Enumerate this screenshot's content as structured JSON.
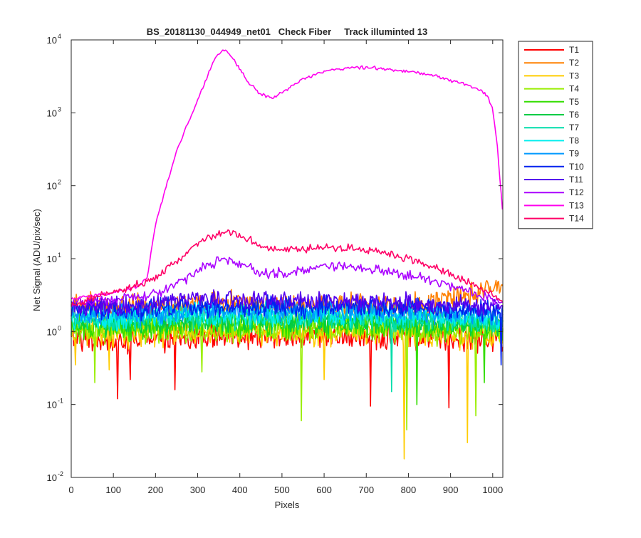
{
  "chart_data": {
    "type": "line",
    "title": "BS_20181130_044949_net01   Check Fiber     Track illuminted 13",
    "xlabel": "Pixels",
    "ylabel": "Net Signal (ADU/pix/sec)",
    "xlim": [
      0,
      1024
    ],
    "ylim": [
      0.01,
      10000
    ],
    "yscale": "log",
    "grid": false,
    "legend_position": "outside-top-right",
    "x_ticks": [
      0,
      100,
      200,
      300,
      400,
      500,
      600,
      700,
      800,
      900,
      1000
    ],
    "y_ticks": [
      {
        "value": 0.01,
        "mantissa": "10",
        "exponent": "-2"
      },
      {
        "value": 0.1,
        "mantissa": "10",
        "exponent": "-1"
      },
      {
        "value": 1,
        "mantissa": "10",
        "exponent": "0"
      },
      {
        "value": 10,
        "mantissa": "10",
        "exponent": "1"
      },
      {
        "value": 100,
        "mantissa": "10",
        "exponent": "2"
      },
      {
        "value": 1000,
        "mantissa": "10",
        "exponent": "3"
      },
      {
        "value": 10000,
        "mantissa": "10",
        "exponent": "4"
      }
    ],
    "series": [
      {
        "name": "T1",
        "color": "#ff0000",
        "noise": 0.5,
        "spikes": [
          [
            110,
            0.12
          ],
          [
            140,
            0.22
          ],
          [
            245,
            0.16
          ],
          [
            710,
            0.095
          ],
          [
            895,
            0.09
          ]
        ],
        "x": [
          0,
          100,
          200,
          300,
          400,
          500,
          600,
          700,
          800,
          900,
          1024
        ],
        "y": [
          0.8,
          0.75,
          0.8,
          0.85,
          0.85,
          0.85,
          0.85,
          0.85,
          0.85,
          0.8,
          0.8
        ]
      },
      {
        "name": "T2",
        "color": "#ff8000",
        "noise": 0.5,
        "spikes": [],
        "x": [
          0,
          100,
          200,
          300,
          400,
          500,
          600,
          700,
          800,
          850,
          900,
          950,
          1000,
          1024
        ],
        "y": [
          2.3,
          2.1,
          2.2,
          2.4,
          2.4,
          2.3,
          2.3,
          2.3,
          2.3,
          2.4,
          2.6,
          3.2,
          4.2,
          4.6
        ]
      },
      {
        "name": "T3",
        "color": "#ffcc00",
        "noise": 0.55,
        "spikes": [
          [
            10,
            0.35
          ],
          [
            90,
            0.3
          ],
          [
            790,
            0.018
          ],
          [
            940,
            0.03
          ],
          [
            600,
            0.22
          ]
        ],
        "x": [
          0,
          100,
          200,
          300,
          400,
          500,
          600,
          700,
          800,
          900,
          1024
        ],
        "y": [
          1.0,
          0.95,
          1.0,
          1.0,
          1.0,
          1.0,
          1.0,
          1.0,
          1.0,
          0.95,
          0.9
        ]
      },
      {
        "name": "T4",
        "color": "#99ee00",
        "noise": 0.55,
        "spikes": [
          [
            55,
            0.2
          ],
          [
            545,
            0.06
          ],
          [
            795,
            0.045
          ],
          [
            960,
            0.07
          ],
          [
            310,
            0.28
          ]
        ],
        "x": [
          0,
          100,
          200,
          300,
          400,
          500,
          600,
          700,
          800,
          900,
          1024
        ],
        "y": [
          1.1,
          1.05,
          1.1,
          1.1,
          1.1,
          1.1,
          1.1,
          1.1,
          1.1,
          1.05,
          1.0
        ]
      },
      {
        "name": "T5",
        "color": "#33dd00",
        "noise": 0.5,
        "spikes": [
          [
            820,
            0.1
          ],
          [
            980,
            0.2
          ]
        ],
        "x": [
          0,
          100,
          200,
          300,
          400,
          500,
          600,
          700,
          800,
          900,
          1024
        ],
        "y": [
          1.2,
          1.15,
          1.2,
          1.25,
          1.25,
          1.25,
          1.25,
          1.25,
          1.2,
          1.15,
          1.1
        ]
      },
      {
        "name": "T6",
        "color": "#00cc44",
        "noise": 0.45,
        "spikes": [],
        "x": [
          0,
          100,
          200,
          300,
          400,
          500,
          600,
          700,
          800,
          900,
          1024
        ],
        "y": [
          1.35,
          1.3,
          1.35,
          1.4,
          1.4,
          1.4,
          1.4,
          1.4,
          1.35,
          1.3,
          1.25
        ]
      },
      {
        "name": "T7",
        "color": "#00ddaa",
        "noise": 0.45,
        "spikes": [
          [
            760,
            0.15
          ]
        ],
        "x": [
          0,
          100,
          200,
          300,
          400,
          500,
          600,
          700,
          800,
          900,
          1024
        ],
        "y": [
          1.5,
          1.45,
          1.5,
          1.55,
          1.55,
          1.55,
          1.55,
          1.55,
          1.5,
          1.45,
          1.4
        ]
      },
      {
        "name": "T8",
        "color": "#00eeee",
        "noise": 0.45,
        "spikes": [],
        "x": [
          0,
          100,
          200,
          300,
          400,
          500,
          600,
          700,
          800,
          900,
          1024
        ],
        "y": [
          1.6,
          1.55,
          1.6,
          1.7,
          1.7,
          1.7,
          1.7,
          1.7,
          1.65,
          1.6,
          1.5
        ]
      },
      {
        "name": "T9",
        "color": "#0099ff",
        "noise": 0.4,
        "spikes": [],
        "x": [
          0,
          100,
          200,
          300,
          400,
          500,
          600,
          700,
          800,
          900,
          1024
        ],
        "y": [
          1.8,
          1.75,
          1.8,
          1.9,
          1.9,
          1.9,
          1.9,
          1.9,
          1.85,
          1.8,
          1.7
        ]
      },
      {
        "name": "T10",
        "color": "#0022ee",
        "noise": 0.4,
        "spikes": [
          [
            1020,
            0.35
          ]
        ],
        "x": [
          0,
          100,
          200,
          300,
          400,
          500,
          600,
          700,
          800,
          900,
          1024
        ],
        "y": [
          2.0,
          1.95,
          2.1,
          2.2,
          2.2,
          2.2,
          2.2,
          2.2,
          2.1,
          2.0,
          1.9
        ]
      },
      {
        "name": "T11",
        "color": "#5500ee",
        "noise": 0.35,
        "spikes": [],
        "x": [
          0,
          100,
          200,
          300,
          400,
          500,
          600,
          700,
          800,
          900,
          1024
        ],
        "y": [
          2.3,
          2.2,
          2.4,
          2.7,
          2.8,
          2.7,
          2.7,
          2.6,
          2.5,
          2.3,
          2.2
        ]
      },
      {
        "name": "T12",
        "color": "#aa00ff",
        "noise": 0.2,
        "spikes": [],
        "x": [
          0,
          100,
          200,
          250,
          300,
          360,
          400,
          450,
          500,
          550,
          600,
          650,
          700,
          750,
          800,
          850,
          900,
          950,
          1000,
          1024
        ],
        "y": [
          2.6,
          2.8,
          3.2,
          4.5,
          6.8,
          9.8,
          8.5,
          6.5,
          6.2,
          7.0,
          8.0,
          7.6,
          7.2,
          6.8,
          6.0,
          5.0,
          4.2,
          3.5,
          2.8,
          2.5
        ]
      },
      {
        "name": "T13",
        "color": "#ff00ee",
        "noise": 0.06,
        "spikes": [],
        "x": [
          0,
          100,
          160,
          180,
          200,
          250,
          300,
          340,
          360,
          380,
          420,
          450,
          475,
          500,
          550,
          600,
          650,
          700,
          750,
          800,
          850,
          900,
          950,
          975,
          990,
          1000,
          1010,
          1024
        ],
        "y": [
          2.8,
          3.4,
          4.2,
          5.5,
          30,
          300,
          1500,
          5500,
          7500,
          6000,
          2600,
          1800,
          1600,
          1900,
          2900,
          3700,
          4100,
          4200,
          4000,
          3700,
          3300,
          2800,
          2300,
          2000,
          1600,
          1100,
          400,
          40
        ]
      },
      {
        "name": "T14",
        "color": "#ff0066",
        "noise": 0.15,
        "spikes": [],
        "x": [
          0,
          50,
          100,
          150,
          200,
          250,
          300,
          350,
          370,
          400,
          450,
          500,
          550,
          600,
          650,
          700,
          750,
          800,
          850,
          900,
          950,
          1000,
          1024
        ],
        "y": [
          2.3,
          2.8,
          3.5,
          4.2,
          5.5,
          9,
          16,
          22,
          23,
          21,
          15,
          13.5,
          13.5,
          14,
          14,
          13.5,
          12,
          10,
          8,
          6,
          4.5,
          3.2,
          2.5
        ]
      }
    ]
  }
}
